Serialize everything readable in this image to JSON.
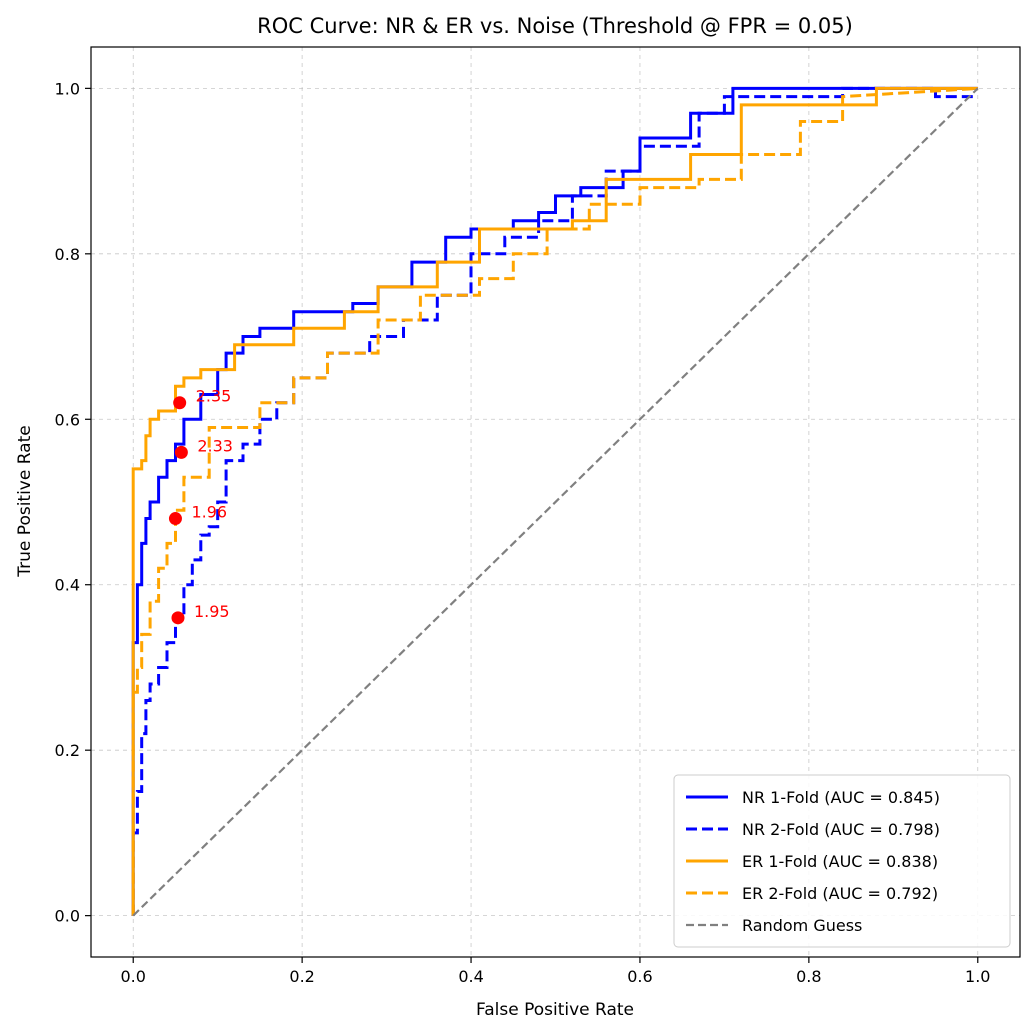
{
  "chart_data": {
    "type": "line",
    "title": "ROC Curve: NR & ER vs. Noise (Threshold @ FPR = 0.05)",
    "xlabel": "False Positive Rate",
    "ylabel": "True Positive Rate",
    "xlim": [
      -0.05,
      1.05
    ],
    "ylim": [
      -0.05,
      1.05
    ],
    "xticks": [
      0.0,
      0.2,
      0.4,
      0.6,
      0.8,
      1.0
    ],
    "yticks": [
      0.0,
      0.2,
      0.4,
      0.6,
      0.8,
      1.0
    ],
    "xtick_labels": [
      "0.0",
      "0.2",
      "0.4",
      "0.6",
      "0.8",
      "1.0"
    ],
    "ytick_labels": [
      "0.0",
      "0.2",
      "0.4",
      "0.6",
      "0.8",
      "1.0"
    ],
    "grid": true,
    "legend_position": "bottom-right",
    "series": [
      {
        "name": "NR 1-Fold (AUC = 0.845)",
        "color": "#0000ff",
        "dash": "solid",
        "x": [
          0.0,
          0.0,
          0.005,
          0.005,
          0.01,
          0.01,
          0.015,
          0.015,
          0.02,
          0.02,
          0.03,
          0.03,
          0.04,
          0.04,
          0.05,
          0.05,
          0.06,
          0.06,
          0.08,
          0.08,
          0.1,
          0.1,
          0.11,
          0.11,
          0.13,
          0.13,
          0.15,
          0.15,
          0.19,
          0.19,
          0.26,
          0.26,
          0.29,
          0.29,
          0.33,
          0.33,
          0.37,
          0.37,
          0.4,
          0.4,
          0.45,
          0.45,
          0.48,
          0.48,
          0.5,
          0.5,
          0.53,
          0.53,
          0.58,
          0.58,
          0.6,
          0.6,
          0.66,
          0.66,
          0.71,
          0.71,
          1.0
        ],
        "y": [
          0.0,
          0.33,
          0.33,
          0.4,
          0.4,
          0.45,
          0.45,
          0.48,
          0.48,
          0.5,
          0.5,
          0.53,
          0.53,
          0.55,
          0.55,
          0.57,
          0.57,
          0.6,
          0.6,
          0.63,
          0.63,
          0.66,
          0.66,
          0.68,
          0.68,
          0.7,
          0.7,
          0.71,
          0.71,
          0.73,
          0.73,
          0.74,
          0.74,
          0.76,
          0.76,
          0.79,
          0.79,
          0.82,
          0.82,
          0.83,
          0.83,
          0.84,
          0.84,
          0.85,
          0.85,
          0.87,
          0.87,
          0.88,
          0.88,
          0.9,
          0.9,
          0.94,
          0.94,
          0.97,
          0.97,
          1.0,
          1.0
        ]
      },
      {
        "name": "NR 2-Fold (AUC = 0.798)",
        "color": "#0000ff",
        "dash": "dashed",
        "x": [
          0.0,
          0.0,
          0.005,
          0.005,
          0.01,
          0.01,
          0.015,
          0.015,
          0.02,
          0.02,
          0.03,
          0.03,
          0.04,
          0.04,
          0.05,
          0.05,
          0.06,
          0.06,
          0.07,
          0.07,
          0.08,
          0.08,
          0.09,
          0.09,
          0.1,
          0.1,
          0.11,
          0.11,
          0.13,
          0.13,
          0.15,
          0.15,
          0.17,
          0.17,
          0.19,
          0.19,
          0.23,
          0.23,
          0.28,
          0.28,
          0.32,
          0.32,
          0.36,
          0.36,
          0.4,
          0.4,
          0.44,
          0.44,
          0.48,
          0.48,
          0.52,
          0.52,
          0.56,
          0.56,
          0.6,
          0.6,
          0.67,
          0.67,
          0.7,
          0.7,
          0.73,
          0.73,
          0.84,
          0.84,
          0.95,
          0.95,
          1.0
        ],
        "y": [
          0.0,
          0.1,
          0.1,
          0.15,
          0.15,
          0.22,
          0.22,
          0.26,
          0.26,
          0.28,
          0.28,
          0.3,
          0.3,
          0.33,
          0.33,
          0.36,
          0.36,
          0.4,
          0.4,
          0.43,
          0.43,
          0.46,
          0.46,
          0.47,
          0.47,
          0.5,
          0.5,
          0.55,
          0.55,
          0.57,
          0.57,
          0.6,
          0.6,
          0.62,
          0.62,
          0.65,
          0.65,
          0.68,
          0.68,
          0.7,
          0.7,
          0.72,
          0.72,
          0.75,
          0.75,
          0.8,
          0.8,
          0.82,
          0.82,
          0.84,
          0.84,
          0.87,
          0.87,
          0.9,
          0.9,
          0.93,
          0.93,
          0.97,
          0.97,
          0.99,
          0.99,
          0.99,
          0.99,
          1.0,
          1.0,
          0.99,
          0.99
        ]
      },
      {
        "name": "ER 1-Fold (AUC = 0.838)",
        "color": "#ffa500",
        "dash": "solid",
        "x": [
          0.0,
          0.0,
          0.01,
          0.01,
          0.015,
          0.015,
          0.02,
          0.02,
          0.03,
          0.03,
          0.05,
          0.05,
          0.06,
          0.06,
          0.08,
          0.08,
          0.12,
          0.12,
          0.19,
          0.19,
          0.25,
          0.25,
          0.29,
          0.29,
          0.36,
          0.36,
          0.41,
          0.41,
          0.52,
          0.52,
          0.56,
          0.56,
          0.66,
          0.66,
          0.72,
          0.72,
          0.88,
          0.88,
          1.0
        ],
        "y": [
          0.0,
          0.54,
          0.54,
          0.55,
          0.55,
          0.58,
          0.58,
          0.6,
          0.6,
          0.61,
          0.61,
          0.64,
          0.64,
          0.65,
          0.65,
          0.66,
          0.66,
          0.69,
          0.69,
          0.71,
          0.71,
          0.73,
          0.73,
          0.76,
          0.76,
          0.79,
          0.79,
          0.83,
          0.83,
          0.84,
          0.84,
          0.89,
          0.89,
          0.92,
          0.92,
          0.98,
          0.98,
          1.0,
          1.0
        ]
      },
      {
        "name": "ER 2-Fold (AUC = 0.792)",
        "color": "#ffa500",
        "dash": "dashed",
        "x": [
          0.0,
          0.0,
          0.005,
          0.005,
          0.01,
          0.01,
          0.02,
          0.02,
          0.03,
          0.03,
          0.04,
          0.04,
          0.05,
          0.05,
          0.06,
          0.06,
          0.09,
          0.09,
          0.15,
          0.15,
          0.19,
          0.19,
          0.23,
          0.23,
          0.29,
          0.29,
          0.34,
          0.34,
          0.41,
          0.41,
          0.45,
          0.45,
          0.49,
          0.49,
          0.54,
          0.54,
          0.6,
          0.6,
          0.67,
          0.67,
          0.72,
          0.72,
          0.79,
          0.79,
          0.84,
          0.84,
          1.0
        ],
        "y": [
          0.0,
          0.27,
          0.27,
          0.3,
          0.3,
          0.34,
          0.34,
          0.38,
          0.38,
          0.42,
          0.42,
          0.45,
          0.45,
          0.49,
          0.49,
          0.53,
          0.53,
          0.59,
          0.59,
          0.62,
          0.62,
          0.65,
          0.65,
          0.68,
          0.68,
          0.72,
          0.72,
          0.75,
          0.75,
          0.77,
          0.77,
          0.8,
          0.8,
          0.83,
          0.83,
          0.86,
          0.86,
          0.88,
          0.88,
          0.89,
          0.89,
          0.92,
          0.92,
          0.96,
          0.96,
          0.99,
          1.0
        ]
      },
      {
        "name": "Random Guess",
        "color": "#808080",
        "dash": "dashed",
        "x": [
          0.0,
          1.0
        ],
        "y": [
          0.0,
          1.0
        ]
      }
    ],
    "threshold_points": [
      {
        "x": 0.055,
        "y": 0.62,
        "label": "2.35"
      },
      {
        "x": 0.057,
        "y": 0.56,
        "label": "2.33"
      },
      {
        "x": 0.05,
        "y": 0.48,
        "label": "1.96"
      },
      {
        "x": 0.053,
        "y": 0.36,
        "label": "1.95"
      }
    ],
    "threshold_color": "#ff0000"
  }
}
